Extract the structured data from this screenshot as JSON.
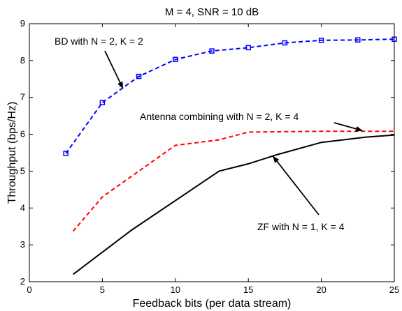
{
  "chart_data": {
    "type": "line",
    "title": "M = 4, SNR = 10 dB",
    "xlabel": "Feedback bits (per data stream)",
    "ylabel": "Throughput (bps/Hz)",
    "xlim": [
      0,
      25
    ],
    "ylim": [
      2,
      9
    ],
    "xticks": [
      0,
      5,
      10,
      15,
      20,
      25
    ],
    "yticks": [
      2,
      3,
      4,
      5,
      6,
      7,
      8,
      9
    ],
    "grid": false,
    "series": [
      {
        "name": "BD with N = 2, K = 2",
        "color": "#0000ff",
        "dash": "dashed",
        "marker": "square",
        "x": [
          2.5,
          5,
          7.5,
          10,
          12.5,
          15,
          17.5,
          20,
          22.5,
          25
        ],
        "y": [
          5.48,
          6.86,
          7.57,
          8.03,
          8.26,
          8.35,
          8.48,
          8.55,
          8.56,
          8.58
        ]
      },
      {
        "name": "Antenna combining with N = 2, K = 4",
        "color": "#ff0000",
        "dash": "dashed",
        "marker": "none",
        "x": [
          3,
          5,
          10,
          13,
          15,
          20,
          25
        ],
        "y": [
          3.37,
          4.3,
          5.7,
          5.85,
          6.06,
          6.08,
          6.08
        ]
      },
      {
        "name": "ZF with N = 1, K = 4",
        "color": "#000000",
        "dash": "solid",
        "marker": "none",
        "x": [
          3,
          5,
          7,
          10,
          13,
          15,
          17,
          20,
          23,
          25
        ],
        "y": [
          2.2,
          2.8,
          3.4,
          4.2,
          5.0,
          5.2,
          5.45,
          5.78,
          5.92,
          5.98
        ]
      }
    ],
    "annotations": [
      {
        "text": "BD with N = 2, K = 2",
        "target": [
          6.4,
          7.25
        ]
      },
      {
        "text": "Antenna combining with N = 2, K = 4",
        "target": [
          22.8,
          6.1
        ]
      },
      {
        "text": "ZF with N = 1, K = 4",
        "target": [
          16.7,
          5.4
        ]
      }
    ]
  }
}
